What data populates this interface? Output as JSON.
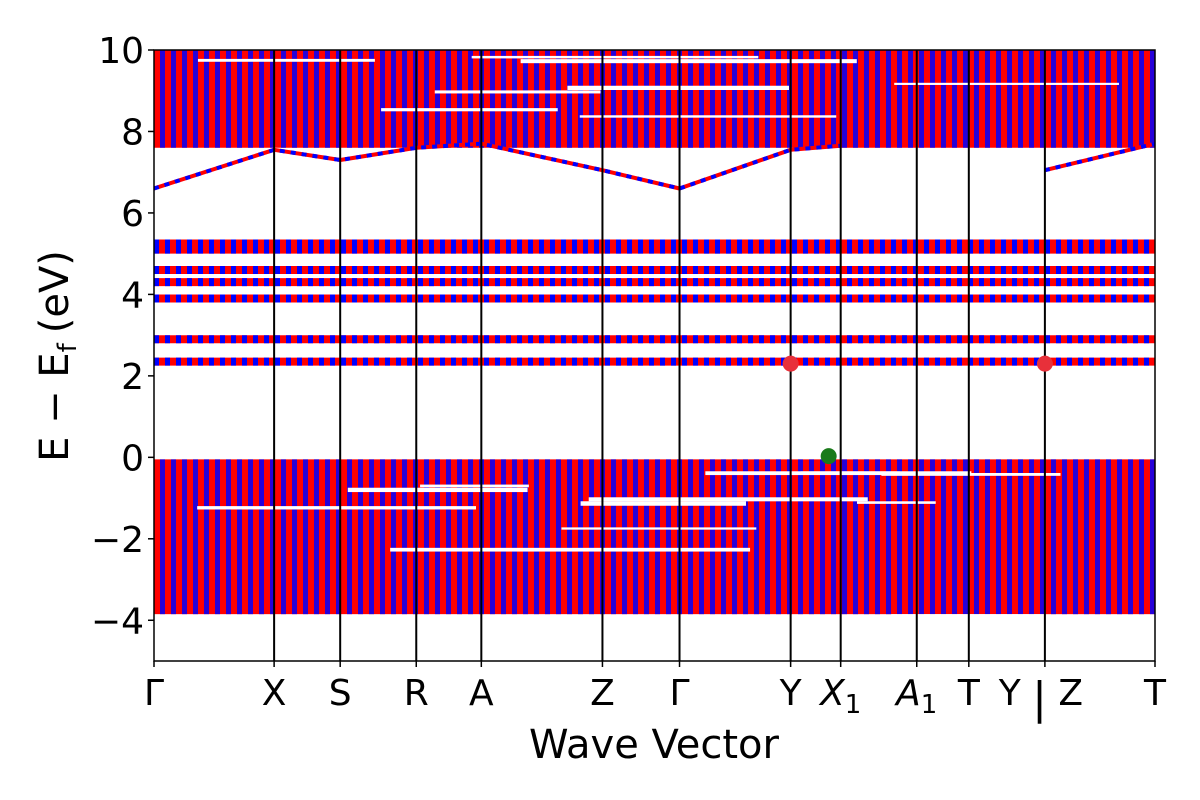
{
  "chart_data": {
    "type": "line",
    "xlabel": "Wave Vector",
    "ylabel": "E − E",
    "ylabel_sub": "f",
    "ylabel_unit": "(eV)",
    "ylim": [
      -5,
      10
    ],
    "yticks": [
      -4,
      -2,
      0,
      2,
      4,
      6,
      8,
      10
    ],
    "ytick_labels": [
      "−4",
      "−2",
      "0",
      "2",
      "4",
      "6",
      "8",
      "10"
    ],
    "grid": false,
    "legend": "none",
    "high_symmetry_points": [
      {
        "label": "Γ",
        "sub": "",
        "pos": 0.0
      },
      {
        "label": "X",
        "sub": "",
        "pos": 0.12
      },
      {
        "label": "S",
        "sub": "",
        "pos": 0.186
      },
      {
        "label": "R",
        "sub": "",
        "pos": 0.262
      },
      {
        "label": "A",
        "sub": "",
        "pos": 0.327
      },
      {
        "label": "Z",
        "sub": "",
        "pos": 0.448
      },
      {
        "label": "Γ",
        "sub": "",
        "pos": 0.525
      },
      {
        "label": "Y",
        "sub": "",
        "pos": 0.636
      },
      {
        "label": "X",
        "sub": "1",
        "pos": 0.686
      },
      {
        "label": "A",
        "sub": "1",
        "pos": 0.762
      },
      {
        "label": "T",
        "sub": "",
        "pos": 0.814
      },
      {
        "label": "Y | Z",
        "sub": "",
        "pos": 0.89
      },
      {
        "label": "T",
        "sub": "",
        "pos": 1.0
      }
    ],
    "series_colors": {
      "spin_up": "#ff0000",
      "spin_down": "#0000ff"
    },
    "band_regions": [
      {
        "name": "valence",
        "ymin": -3.85,
        "ymax": -0.05
      },
      {
        "name": "conduction-high",
        "ymin": 7.6,
        "ymax": 10.0
      }
    ],
    "flat_bands": [
      2.35,
      2.9,
      3.9,
      4.3,
      4.6,
      5.1,
      5.25
    ],
    "dispersive_bands": [
      {
        "x": [
          0.0,
          0.12,
          0.186,
          0.262,
          0.327,
          0.448,
          0.525,
          0.636,
          0.686
        ],
        "y": [
          6.6,
          7.55,
          7.3,
          7.6,
          7.7,
          7.05,
          6.6,
          7.55,
          7.65
        ]
      },
      {
        "x": [
          0.89,
          1.0
        ],
        "y": [
          7.05,
          7.7
        ]
      }
    ],
    "markers": [
      {
        "x": 0.636,
        "y": 2.3,
        "color": "#e8303a",
        "type": "cbm"
      },
      {
        "x": 0.89,
        "y": 2.3,
        "color": "#e8303a",
        "type": "cbm"
      },
      {
        "x": 0.674,
        "y": 0.03,
        "color": "#1a7a1a",
        "type": "vbm"
      }
    ]
  }
}
